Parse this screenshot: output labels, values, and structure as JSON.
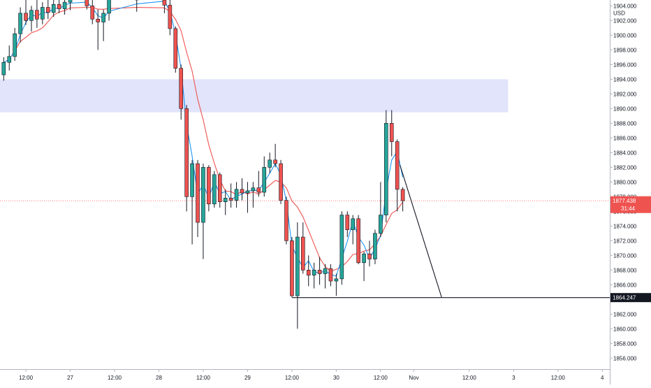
{
  "chart_data": {
    "type": "candlestick",
    "currency": "USD",
    "y_axis": {
      "ylim": [
        1854.5,
        1904.8
      ],
      "ticks": [
        1856,
        1858,
        1860,
        1862,
        1864,
        1866,
        1868,
        1870,
        1872,
        1874,
        1876,
        1878,
        1880,
        1882,
        1884,
        1886,
        1888,
        1890,
        1892,
        1894,
        1896,
        1898,
        1900,
        1902,
        1904
      ],
      "tick_labels": [
        "1856.000",
        "1858.000",
        "1860.000",
        "1862.000",
        "1864.000",
        "1866.000",
        "1868.000",
        "1870.000",
        "1872.000",
        "1874.000",
        "1876.000",
        "1878.000",
        "1880.000",
        "1882.000",
        "1884.000",
        "1886.000",
        "1888.000",
        "1890.000",
        "1892.000",
        "1894.000",
        "1896.000",
        "1898.000",
        "1900.000",
        "1902.000",
        "1904.000"
      ]
    },
    "x_axis": {
      "labels": [
        "12:00",
        "27",
        "12:00",
        "28",
        "12:00",
        "29",
        "12:00",
        "30",
        "12:00",
        "Nov",
        "12:00",
        "3",
        "12:00",
        "4"
      ],
      "label_bar_index": [
        -16,
        -8,
        0,
        8,
        16,
        24,
        32,
        40,
        48,
        54,
        64,
        72,
        80,
        88
      ]
    },
    "price_tags": [
      {
        "label": "1877.438",
        "value": 1877.438,
        "countdown": "31:44",
        "color": "#ef5350"
      },
      {
        "label": "1864.247",
        "value": 1864.247,
        "color": "#131722"
      }
    ],
    "zone": {
      "from": 1889.5,
      "to": 1894.0,
      "bar_start": -21,
      "bar_end": 71,
      "color": "#e1e4fb"
    },
    "horizontal_ray": {
      "value": 1864.247,
      "bar_start": 32
    },
    "trend_line": {
      "from": {
        "bar": 51.5,
        "value": 1882.3
      },
      "to": {
        "bar": 59,
        "value": 1864.3
      }
    },
    "moving_averages": [
      {
        "color": "#ef5350",
        "period": 8
      },
      {
        "color": "#2196f3",
        "period": 3
      }
    ],
    "candles": [
      [
        -20,
        1894.6,
        1897.0,
        1893.8,
        1896.3
      ],
      [
        -19,
        1896.3,
        1898.6,
        1895.2,
        1897.1
      ],
      [
        -18,
        1897.1,
        1901.0,
        1896.5,
        1900.2
      ],
      [
        -17,
        1900.2,
        1903.8,
        1899.0,
        1903.0
      ],
      [
        -16,
        1903.0,
        1905.0,
        1901.4,
        1902.0
      ],
      [
        -15,
        1902.0,
        1904.0,
        1900.5,
        1903.4
      ],
      [
        -14,
        1903.4,
        1905.0,
        1901.0,
        1902.2
      ],
      [
        -13,
        1902.2,
        1904.5,
        1901.5,
        1903.8
      ],
      [
        -12,
        1903.8,
        1905.0,
        1902.2,
        1903.1
      ],
      [
        -11,
        1903.1,
        1905.0,
        1902.5,
        1904.2
      ],
      [
        -10,
        1904.2,
        1905.0,
        1903.0,
        1903.6
      ],
      [
        -9,
        1903.6,
        1905.0,
        1902.8,
        1904.5
      ],
      [
        -8,
        1904.5,
        1905.0,
        1903.4,
        1905.0
      ],
      [
        -5,
        1905.0,
        1905.0,
        1903.5,
        1904.0
      ],
      [
        -4,
        1904.0,
        1905.0,
        1901.5,
        1902.2
      ],
      [
        -3,
        1902.2,
        1903.5,
        1898.0,
        1901.8
      ],
      [
        -2,
        1901.8,
        1903.5,
        1899.2,
        1903.0
      ],
      [
        -1,
        1903.0,
        1905.0,
        1902.0,
        1905.0
      ],
      [
        4,
        1905.0,
        1905.0,
        1903.2,
        1904.8
      ],
      [
        9,
        1904.8,
        1905.0,
        1903.0,
        1904.1
      ],
      [
        10,
        1904.1,
        1905.0,
        1900.0,
        1900.9
      ],
      [
        11,
        1900.9,
        1901.2,
        1894.9,
        1895.5
      ],
      [
        12,
        1895.5,
        1896.0,
        1888.5,
        1890.0
      ],
      [
        13,
        1890.0,
        1890.5,
        1876.0,
        1878.0
      ],
      [
        14,
        1878.0,
        1883.0,
        1871.5,
        1882.5
      ],
      [
        15,
        1882.5,
        1883.0,
        1872.5,
        1874.5
      ],
      [
        16,
        1874.5,
        1882.5,
        1869.5,
        1882.0
      ],
      [
        17,
        1882.0,
        1882.3,
        1876.0,
        1877.0
      ],
      [
        18,
        1877.0,
        1881.5,
        1876.5,
        1881.0
      ],
      [
        19,
        1881.0,
        1881.3,
        1876.5,
        1877.3
      ],
      [
        20,
        1877.3,
        1879.0,
        1875.5,
        1877.8
      ],
      [
        21,
        1877.8,
        1879.8,
        1876.5,
        1877.5
      ],
      [
        22,
        1877.5,
        1880.0,
        1876.5,
        1879.0
      ],
      [
        23,
        1879.0,
        1880.5,
        1877.5,
        1878.5
      ],
      [
        24,
        1878.5,
        1880.0,
        1875.8,
        1878.8
      ],
      [
        25,
        1878.8,
        1880.0,
        1876.5,
        1879.2
      ],
      [
        26,
        1879.2,
        1881.5,
        1878.0,
        1878.6
      ],
      [
        27,
        1878.6,
        1883.5,
        1878.0,
        1882.0
      ],
      [
        28,
        1882.0,
        1884.0,
        1881.2,
        1883.0
      ],
      [
        29,
        1883.0,
        1885.2,
        1882.0,
        1882.5
      ],
      [
        30,
        1882.5,
        1883.0,
        1877.0,
        1877.5
      ],
      [
        31,
        1877.5,
        1878.0,
        1871.5,
        1872.0
      ],
      [
        32,
        1872.0,
        1872.5,
        1864.3,
        1864.5
      ],
      [
        33,
        1864.5,
        1874.5,
        1860.0,
        1872.5
      ],
      [
        34,
        1872.5,
        1874.5,
        1867.5,
        1868.0
      ],
      [
        35,
        1868.0,
        1870.0,
        1865.8,
        1867.3
      ],
      [
        36,
        1867.3,
        1869.0,
        1865.5,
        1868.0
      ],
      [
        37,
        1868.0,
        1869.8,
        1866.0,
        1867.5
      ],
      [
        38,
        1867.5,
        1868.8,
        1865.5,
        1868.2
      ],
      [
        39,
        1868.2,
        1868.8,
        1865.8,
        1866.5
      ],
      [
        40,
        1866.5,
        1867.5,
        1864.5,
        1866.8
      ],
      [
        41,
        1866.8,
        1876.0,
        1866.0,
        1875.5
      ],
      [
        42,
        1875.5,
        1876.0,
        1872.5,
        1873.5
      ],
      [
        43,
        1873.5,
        1875.5,
        1871.5,
        1875.0
      ],
      [
        44,
        1875.0,
        1875.5,
        1868.8,
        1869.0
      ],
      [
        45,
        1869.0,
        1870.5,
        1866.5,
        1870.2
      ],
      [
        46,
        1870.2,
        1872.0,
        1868.5,
        1869.5
      ],
      [
        47,
        1869.5,
        1873.5,
        1868.8,
        1873.0
      ],
      [
        48,
        1873.0,
        1880.0,
        1872.5,
        1875.5
      ],
      [
        49,
        1875.5,
        1889.8,
        1874.5,
        1888.0
      ],
      [
        50,
        1888.0,
        1889.8,
        1883.5,
        1885.5
      ],
      [
        51,
        1885.5,
        1885.8,
        1876.0,
        1879.0
      ],
      [
        52,
        1879.0,
        1879.3,
        1876.0,
        1877.438
      ]
    ]
  }
}
